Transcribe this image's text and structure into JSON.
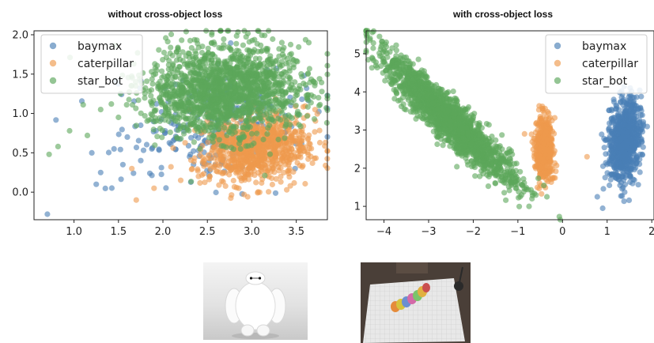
{
  "colors": {
    "baymax": "#4a7fb5",
    "caterpillar": "#ee9a4d",
    "star_bot": "#5ba65a",
    "frame": "#222222"
  },
  "chart_data": [
    {
      "type": "scatter",
      "title": "without cross-object loss",
      "xlim": [
        0.55,
        3.85
      ],
      "ylim": [
        -0.35,
        2.05
      ],
      "x_ticks": [
        1.0,
        1.5,
        2.0,
        2.5,
        3.0,
        3.5
      ],
      "x_tick_labels": [
        "1.0",
        "1.5",
        "2.0",
        "2.5",
        "3.0",
        "3.5"
      ],
      "y_ticks": [
        0.0,
        0.5,
        1.0,
        1.5,
        2.0
      ],
      "y_tick_labels": [
        "0.0",
        "0.5",
        "1.0",
        "1.5",
        "2.0"
      ],
      "grid": false,
      "legend_position": "top-left",
      "point_alpha": 0.6,
      "series": [
        {
          "name": "baymax",
          "color": "#4a7fb5",
          "cloud": {
            "cx": 2.6,
            "cy": 0.85,
            "sx": 0.55,
            "sy": 0.35,
            "rho": 0.3,
            "n": 260
          },
          "points": [
            [
              0.7,
              -0.28
            ],
            [
              1.2,
              0.5
            ],
            [
              1.3,
              0.25
            ],
            [
              1.45,
              0.55
            ],
            [
              1.6,
              0.7
            ],
            [
              1.25,
              0.1
            ],
            [
              1.55,
              0.35
            ],
            [
              1.75,
              0.85
            ]
          ]
        },
        {
          "name": "caterpillar",
          "color": "#ee9a4d",
          "cloud": {
            "cx": 3.05,
            "cy": 0.55,
            "sx": 0.3,
            "sy": 0.22,
            "rho": 0.15,
            "n": 900
          },
          "points": [
            [
              1.7,
              -0.1
            ],
            [
              1.9,
              0.05
            ],
            [
              2.2,
              0.15
            ],
            [
              1.65,
              0.3
            ],
            [
              2.4,
              0.2
            ],
            [
              2.3,
              1.05
            ],
            [
              2.55,
              1.1
            ],
            [
              2.65,
              1.0
            ]
          ]
        },
        {
          "name": "star_bot",
          "color": "#5ba65a",
          "cloud": {
            "cx": 2.7,
            "cy": 1.28,
            "sx": 0.42,
            "sy": 0.3,
            "rho": 0.05,
            "n": 1600
          },
          "points": [
            [
              0.72,
              0.48
            ],
            [
              0.82,
              0.58
            ],
            [
              0.95,
              0.78
            ],
            [
              1.15,
              0.72
            ],
            [
              1.3,
              1.05
            ],
            [
              1.42,
              1.12
            ],
            [
              1.5,
              0.95
            ],
            [
              1.65,
              1.35
            ],
            [
              3.75,
              1.2
            ],
            [
              2.55,
              2.0
            ]
          ]
        }
      ]
    },
    {
      "type": "scatter",
      "title": "with cross-object loss",
      "xlim": [
        -4.4,
        2.05
      ],
      "ylim": [
        0.65,
        5.6
      ],
      "x_ticks": [
        -4,
        -3,
        -2,
        -1,
        0,
        1,
        2
      ],
      "x_tick_labels": [
        "−4",
        "−3",
        "−2",
        "−1",
        "0",
        "1",
        "2"
      ],
      "y_ticks": [
        1,
        2,
        3,
        4,
        5
      ],
      "y_tick_labels": [
        "1",
        "2",
        "3",
        "4",
        "5"
      ],
      "grid": false,
      "legend_position": "top-right",
      "point_alpha": 0.6,
      "series": [
        {
          "name": "baymax",
          "color": "#4a7fb5",
          "cloud": {
            "cx": 1.4,
            "cy": 2.7,
            "sx": 0.17,
            "sy": 0.5,
            "rho": 0.2,
            "n": 900
          },
          "points": [
            [
              0.9,
              0.95
            ],
            [
              0.78,
              1.25
            ],
            [
              1.05,
              1.55
            ],
            [
              1.2,
              3.65
            ],
            [
              1.5,
              3.95
            ],
            [
              1.0,
              2.1
            ]
          ]
        },
        {
          "name": "caterpillar",
          "color": "#ee9a4d",
          "cloud": {
            "cx": -0.4,
            "cy": 2.55,
            "sx": 0.1,
            "sy": 0.42,
            "rho": 0.0,
            "n": 500
          },
          "points": [
            [
              -0.85,
              2.9
            ],
            [
              0.55,
              2.3
            ],
            [
              -0.5,
              3.35
            ],
            [
              -0.3,
              1.9
            ]
          ]
        },
        {
          "name": "star_bot",
          "color": "#5ba65a",
          "cloud": {
            "cx": -2.55,
            "cy": 3.3,
            "sx": 0.72,
            "sy": 0.82,
            "rho": -0.93,
            "n": 1900
          },
          "points": [
            [
              -4.1,
              5.45
            ],
            [
              -3.95,
              5.3
            ],
            [
              -0.75,
              1.0
            ],
            [
              -0.95,
              1.25
            ],
            [
              -1.15,
              1.55
            ],
            [
              -2.8,
              3.55
            ],
            [
              -0.35,
              1.25
            ]
          ]
        }
      ]
    }
  ],
  "legend": {
    "labels": [
      "baymax",
      "caterpillar",
      "star_bot"
    ]
  },
  "images": [
    {
      "subject": "baymax"
    },
    {
      "subject": "caterpillar"
    }
  ]
}
